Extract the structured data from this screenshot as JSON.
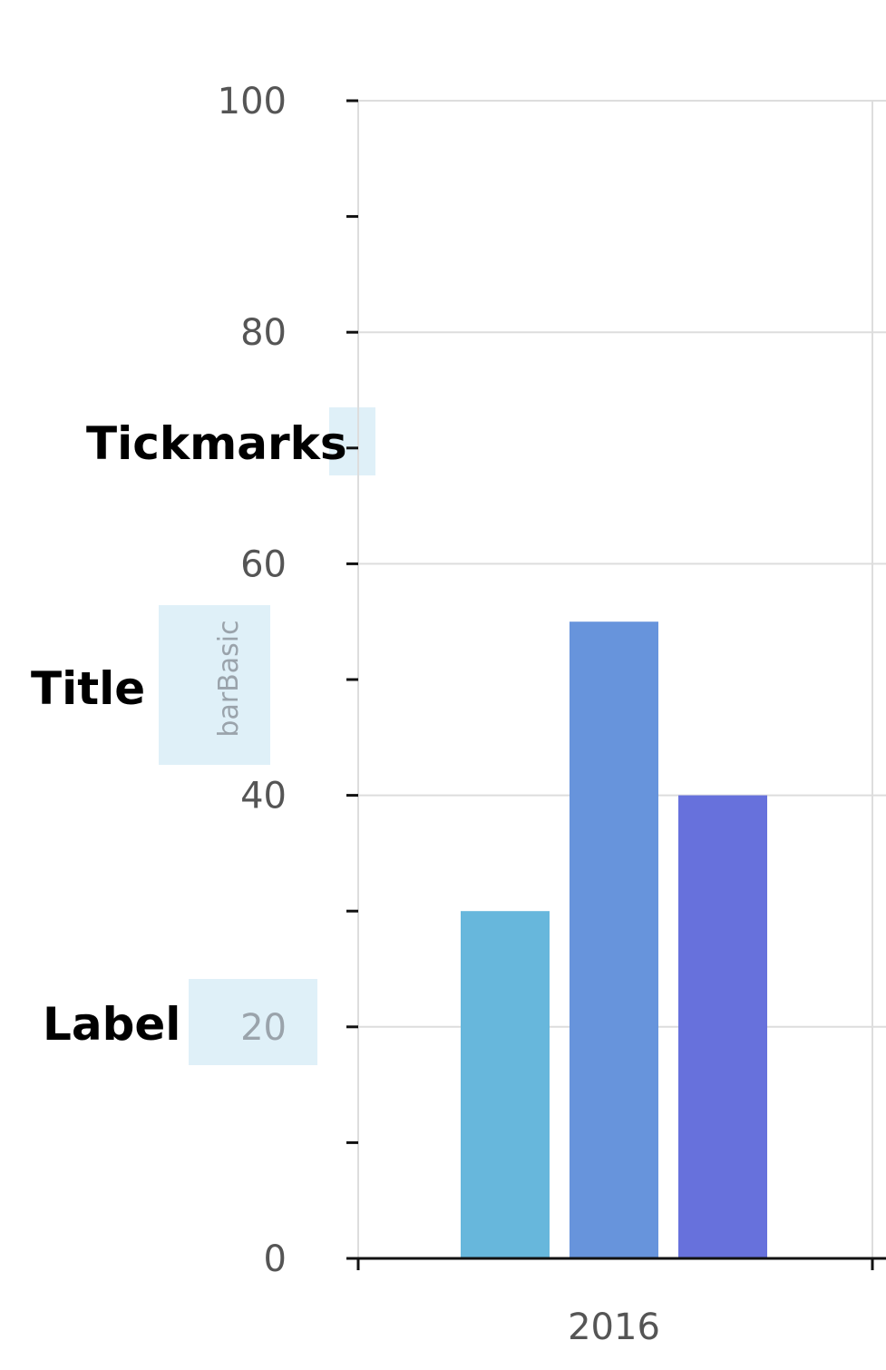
{
  "annotations": {
    "tickmarks": "Tickmarks",
    "title": "Title",
    "label": "Label"
  },
  "colors": {
    "highlight": "#dff0f8",
    "grid": "#dddddd",
    "axis": "#111111",
    "tick_text": "#555555",
    "title_text": "#9aa3ab",
    "series": [
      "#67b7dc",
      "#6794dc",
      "#6771dc"
    ]
  },
  "chart_data": {
    "type": "bar",
    "title": "barBasic",
    "xlabel": "",
    "ylabel": "",
    "categories": [
      "2016"
    ],
    "series": [
      {
        "values": [
          30
        ]
      },
      {
        "values": [
          55
        ]
      },
      {
        "values": [
          40
        ]
      }
    ],
    "ylim": [
      0,
      100
    ],
    "yticks": [
      "0",
      "20",
      "40",
      "60",
      "80",
      "100"
    ],
    "minor_ticks": true,
    "grid": true
  }
}
